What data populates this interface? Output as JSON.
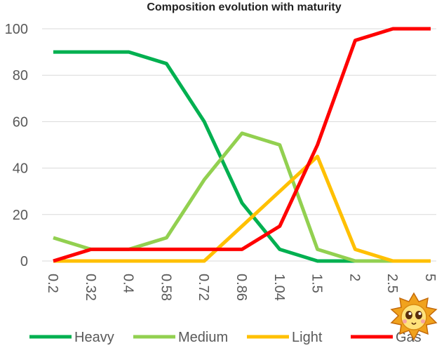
{
  "chart_data": {
    "type": "line",
    "title": "Composition evolution with maturity",
    "xlabel": "",
    "ylabel": "",
    "categories": [
      "0.2",
      "0.32",
      "0.4",
      "0.58",
      "0.72",
      "0.86",
      "1.04",
      "1.5",
      "2",
      "2.5",
      "5"
    ],
    "ylim": [
      0,
      100
    ],
    "yticks": [
      "0",
      "20",
      "40",
      "60",
      "80",
      "100"
    ],
    "grid": true,
    "legend": "bottom",
    "series": [
      {
        "name": "Heavy",
        "color": "#00b050",
        "values": [
          90,
          90,
          90,
          85,
          60,
          25,
          5,
          0,
          0,
          0,
          0
        ]
      },
      {
        "name": "Medium",
        "color": "#92d050",
        "values": [
          10,
          5,
          5,
          10,
          35,
          55,
          50,
          5,
          0,
          0,
          0
        ]
      },
      {
        "name": "Light",
        "color": "#ffc000",
        "values": [
          0,
          0,
          0,
          0,
          0,
          15,
          30,
          45,
          5,
          0,
          0
        ]
      },
      {
        "name": "Gas",
        "color": "#ff0000",
        "values": [
          0,
          5,
          5,
          5,
          5,
          5,
          15,
          50,
          95,
          100,
          100
        ]
      }
    ]
  }
}
